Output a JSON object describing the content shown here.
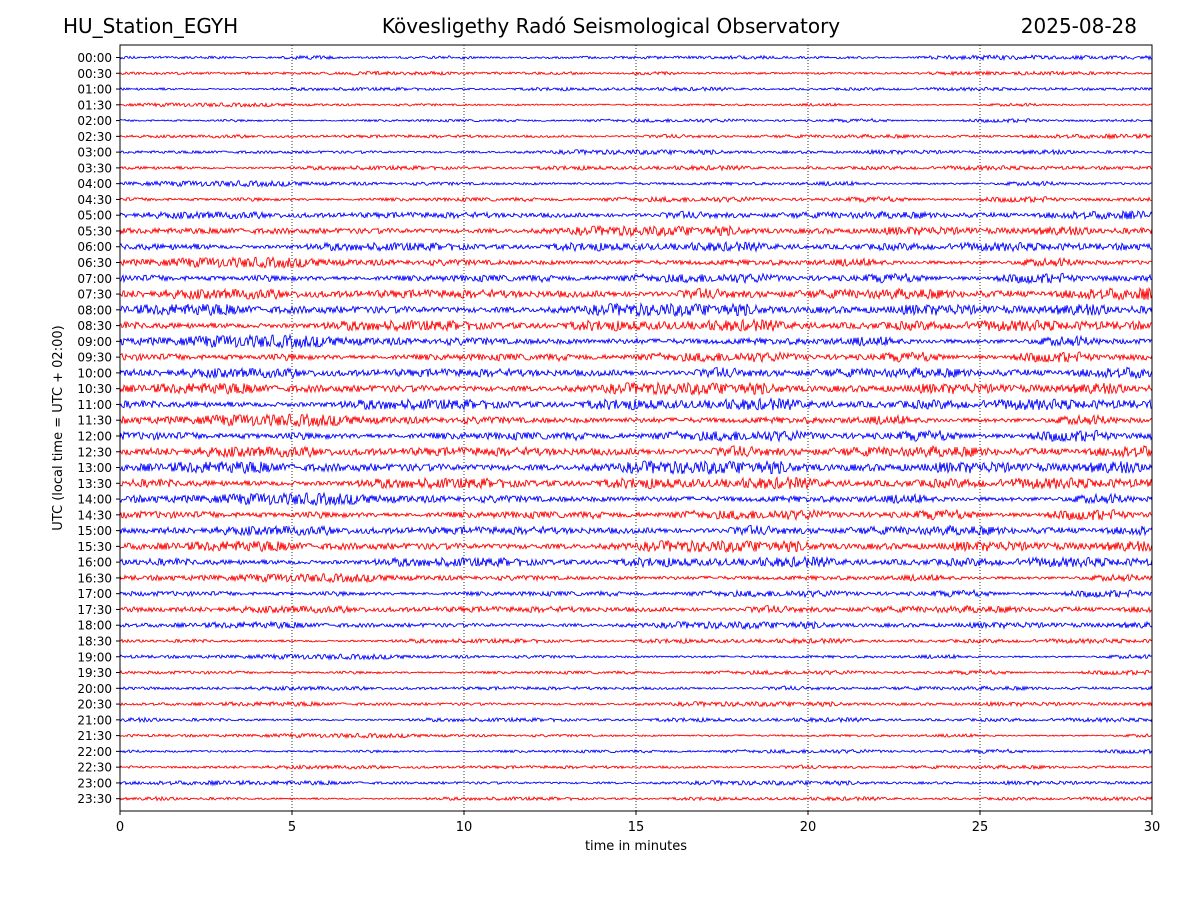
{
  "header": {
    "station": "HU_Station_EGYH",
    "title": "Kövesligethy Radó Seismological Observatory",
    "date": "2025-08-28"
  },
  "chart_data": {
    "type": "line",
    "title": "Kövesligethy Radó Seismological Observatory",
    "xlabel": "time in minutes",
    "ylabel": "UTC (local time = UTC + 02:00)",
    "xlim": [
      0,
      30
    ],
    "xticks": [
      "0",
      "5",
      "10",
      "15",
      "20",
      "25",
      "30"
    ],
    "grid": "vertical dotted",
    "trace_colors": [
      "#0000ff",
      "#ff0000"
    ],
    "rows": [
      {
        "label": "00:00",
        "amplitude": 0.2
      },
      {
        "label": "00:30",
        "amplitude": 0.2
      },
      {
        "label": "01:00",
        "amplitude": 0.18
      },
      {
        "label": "01:30",
        "amplitude": 0.18
      },
      {
        "label": "02:00",
        "amplitude": 0.2
      },
      {
        "label": "02:30",
        "amplitude": 0.22
      },
      {
        "label": "03:00",
        "amplitude": 0.25
      },
      {
        "label": "03:30",
        "amplitude": 0.28
      },
      {
        "label": "04:00",
        "amplitude": 0.35
      },
      {
        "label": "04:30",
        "amplitude": 0.4
      },
      {
        "label": "05:00",
        "amplitude": 0.6
      },
      {
        "label": "05:30",
        "amplitude": 0.7
      },
      {
        "label": "06:00",
        "amplitude": 0.75
      },
      {
        "label": "06:30",
        "amplitude": 0.8
      },
      {
        "label": "07:00",
        "amplitude": 0.85
      },
      {
        "label": "07:30",
        "amplitude": 0.95
      },
      {
        "label": "08:00",
        "amplitude": 0.95
      },
      {
        "label": "08:30",
        "amplitude": 1.0
      },
      {
        "label": "09:00",
        "amplitude": 1.0
      },
      {
        "label": "09:30",
        "amplitude": 0.9
      },
      {
        "label": "10:00",
        "amplitude": 0.9
      },
      {
        "label": "10:30",
        "amplitude": 0.9
      },
      {
        "label": "11:00",
        "amplitude": 1.0
      },
      {
        "label": "11:30",
        "amplitude": 0.95
      },
      {
        "label": "12:00",
        "amplitude": 1.0
      },
      {
        "label": "12:30",
        "amplitude": 1.0
      },
      {
        "label": "13:00",
        "amplitude": 1.0
      },
      {
        "label": "13:30",
        "amplitude": 1.0
      },
      {
        "label": "14:00",
        "amplitude": 0.95
      },
      {
        "label": "14:30",
        "amplitude": 0.9
      },
      {
        "label": "15:00",
        "amplitude": 0.85
      },
      {
        "label": "15:30",
        "amplitude": 0.85
      },
      {
        "label": "16:00",
        "amplitude": 0.85
      },
      {
        "label": "16:30",
        "amplitude": 0.6
      },
      {
        "label": "17:00",
        "amplitude": 0.55
      },
      {
        "label": "17:30",
        "amplitude": 0.6
      },
      {
        "label": "18:00",
        "amplitude": 0.45
      },
      {
        "label": "18:30",
        "amplitude": 0.3
      },
      {
        "label": "19:00",
        "amplitude": 0.3
      },
      {
        "label": "19:30",
        "amplitude": 0.28
      },
      {
        "label": "20:00",
        "amplitude": 0.25
      },
      {
        "label": "20:30",
        "amplitude": 0.25
      },
      {
        "label": "21:00",
        "amplitude": 0.25
      },
      {
        "label": "21:30",
        "amplitude": 0.22
      },
      {
        "label": "22:00",
        "amplitude": 0.25
      },
      {
        "label": "22:30",
        "amplitude": 0.22
      },
      {
        "label": "23:00",
        "amplitude": 0.22
      },
      {
        "label": "23:30",
        "amplitude": 0.2
      }
    ]
  }
}
